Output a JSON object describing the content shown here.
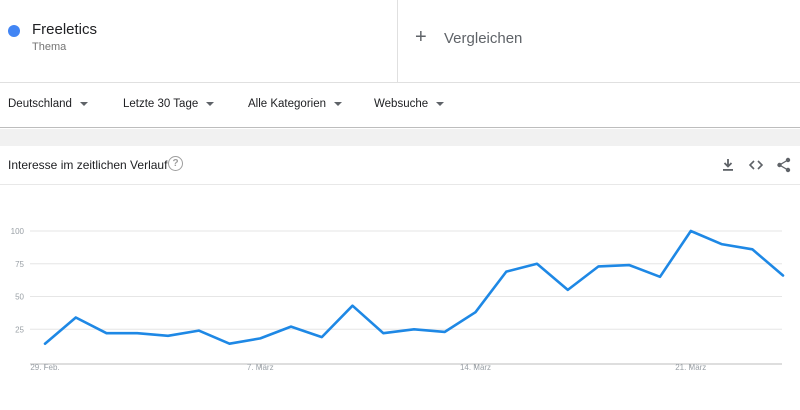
{
  "term": {
    "name": "Freeletics",
    "type": "Thema",
    "color": "#4285f4"
  },
  "compare": {
    "label": "Vergleichen"
  },
  "filters": {
    "region": "Deutschland",
    "period": "Letzte 30 Tage",
    "category": "Alle Kategorien",
    "search_type": "Websuche"
  },
  "card": {
    "title": "Interesse im zeitlichen Verlauf",
    "help_icon": "?"
  },
  "chart_data": {
    "type": "line",
    "title": "",
    "xlabel": "",
    "ylabel": "",
    "ylim": [
      0,
      100
    ],
    "yticks": [
      25,
      50,
      75,
      100
    ],
    "x_tick_labels": [
      {
        "index": 0,
        "label": "29. Feb."
      },
      {
        "index": 7,
        "label": "7. März"
      },
      {
        "index": 14,
        "label": "14. März"
      },
      {
        "index": 21,
        "label": "21. März"
      }
    ],
    "series": [
      {
        "color": "#1e88e5",
        "values": [
          14,
          34,
          22,
          22,
          20,
          24,
          14,
          18,
          27,
          19,
          43,
          22,
          25,
          23,
          38,
          69,
          75,
          55,
          73,
          74,
          65,
          100,
          90,
          86,
          66
        ]
      }
    ]
  }
}
